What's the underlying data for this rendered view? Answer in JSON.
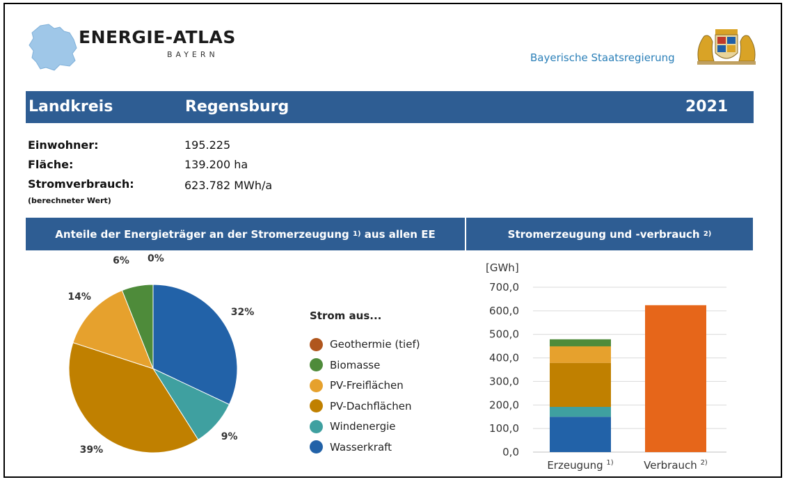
{
  "header": {
    "logo_title": "ENERGIE-ATLAS",
    "logo_sub": "BAYERN",
    "government": "Bayerische Staatsregierung"
  },
  "band": {
    "label": "Landkreis",
    "name": "Regensburg",
    "year": "2021"
  },
  "info": {
    "einwohner_label": "Einwohner:",
    "einwohner_value": "195.225",
    "flaeche_label": "Fläche:",
    "flaeche_value": "139.200 ha",
    "strom_label": "Stromverbrauch:",
    "strom_sub": "(berechneter Wert)",
    "strom_value": "623.782 MWh/a"
  },
  "sections": {
    "left_title": "Anteile der Energieträger an der Stromerzeugung",
    "left_sup": "1)",
    "left_suffix": "aus allen EE",
    "right_title": "Stromerzeugung und -verbrauch",
    "right_sup": "2)"
  },
  "legend": {
    "title": "Strom aus...",
    "items": [
      {
        "label": "Geothermie (tief)",
        "color": "#b0561d"
      },
      {
        "label": "Biomasse",
        "color": "#4e8b3a"
      },
      {
        "label": "PV-Freiflächen",
        "color": "#e6a12d"
      },
      {
        "label": "PV-Dachflächen",
        "color": "#c08000"
      },
      {
        "label": "Windenergie",
        "color": "#3fa0a0"
      },
      {
        "label": "Wasserkraft",
        "color": "#2262a8"
      }
    ]
  },
  "chart_data": [
    {
      "type": "pie",
      "title": "",
      "slices": [
        {
          "name": "Wasserkraft",
          "value": 32,
          "label": "32%",
          "color": "#2262a8"
        },
        {
          "name": "Windenergie",
          "value": 9,
          "label": "9%",
          "color": "#3fa0a0"
        },
        {
          "name": "PV-Dachflächen",
          "value": 39,
          "label": "39%",
          "color": "#c08000"
        },
        {
          "name": "PV-Freiflächen",
          "value": 14,
          "label": "14%",
          "color": "#e6a12d"
        },
        {
          "name": "Biomasse",
          "value": 6,
          "label": "6%",
          "color": "#4e8b3a"
        },
        {
          "name": "Geothermie (tief)",
          "value": 0,
          "label": "0%",
          "color": "#b0561d"
        }
      ]
    },
    {
      "type": "bar",
      "stacked": true,
      "ylabel": "[GWh]",
      "ylim": [
        0,
        700
      ],
      "yticks": [
        "0,0",
        "100,0",
        "200,0",
        "300,0",
        "400,0",
        "500,0",
        "600,0",
        "700,0"
      ],
      "grid": true,
      "categories": [
        {
          "label": "Erzeugung",
          "sup": "1)"
        },
        {
          "label": "Verbrauch",
          "sup": "2)"
        }
      ],
      "series": [
        {
          "name": "Wasserkraft",
          "color": "#2262a8",
          "values": [
            150,
            0
          ]
        },
        {
          "name": "Windenergie",
          "color": "#3fa0a0",
          "values": [
            42,
            0
          ]
        },
        {
          "name": "PV-Dachflächen",
          "color": "#c08000",
          "values": [
            187,
            0
          ]
        },
        {
          "name": "PV-Freiflächen",
          "color": "#e6a12d",
          "values": [
            70,
            0
          ]
        },
        {
          "name": "Biomasse",
          "color": "#4e8b3a",
          "values": [
            30,
            0
          ]
        },
        {
          "name": "Geothermie (tief)",
          "color": "#b0561d",
          "values": [
            0,
            0
          ]
        },
        {
          "name": "Verbrauch",
          "color": "#e6661a",
          "values": [
            0,
            623.8
          ]
        }
      ]
    }
  ]
}
